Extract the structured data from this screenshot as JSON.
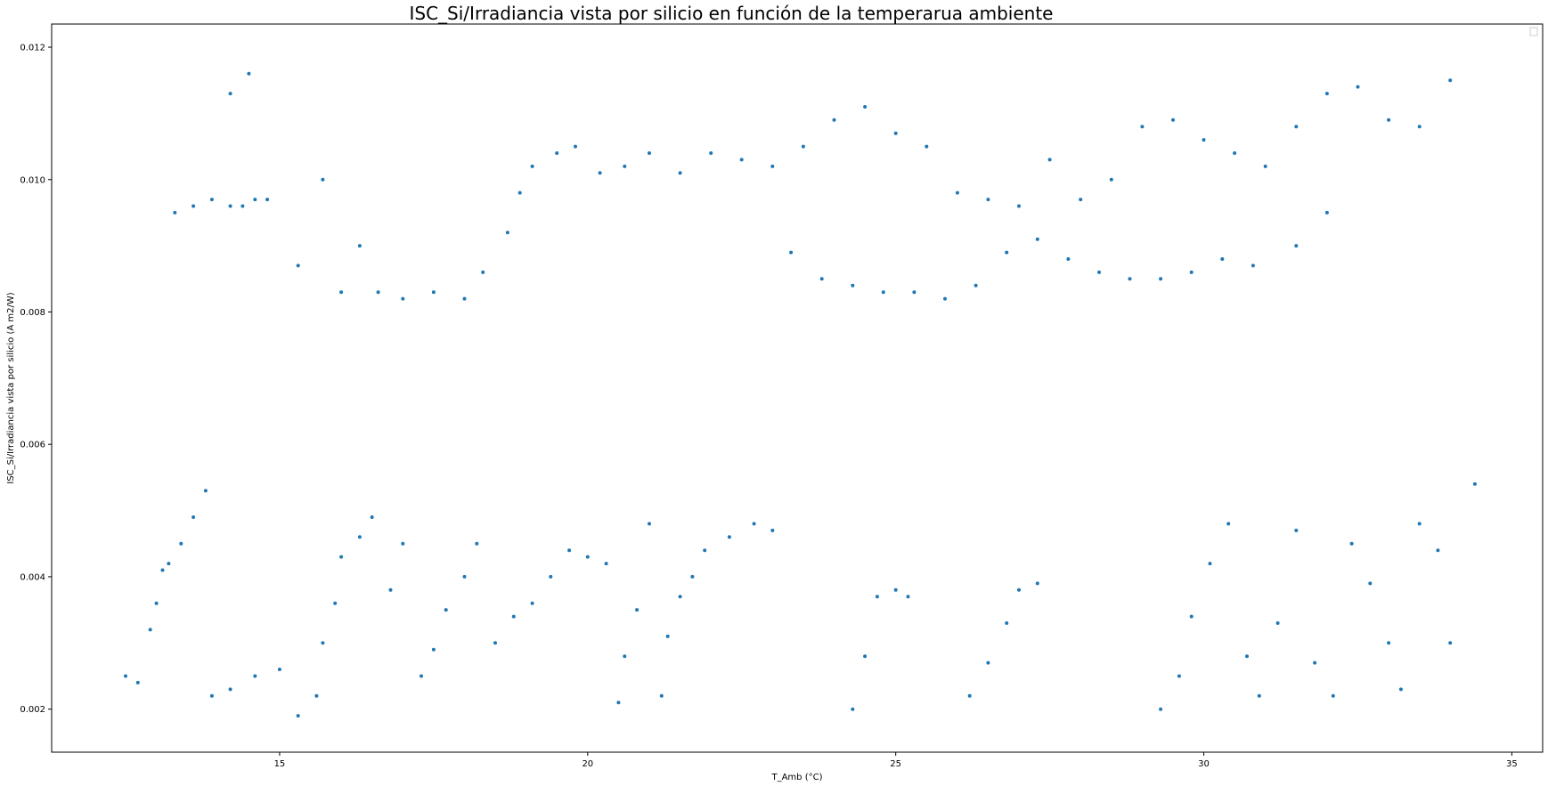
{
  "chart_data": {
    "type": "scatter",
    "title": "ISC_Si/Irradiancia vista por silicio en función de la temperarua ambiente",
    "xlabel": "T_Amb (°C)",
    "ylabel": "ISC_Si/Irradiancia vista por silicio (A m2/W)",
    "xlim": [
      11.3,
      35.5
    ],
    "ylim": [
      0.00135,
      0.01235
    ],
    "xticks": [
      "15",
      "20",
      "25",
      "30",
      "35"
    ],
    "yticks": [
      "0.002",
      "0.004",
      "0.006",
      "0.008",
      "0.010",
      "0.012"
    ],
    "legend": "top-right",
    "grid": false,
    "marker_color": "#1f77b4",
    "series": [
      {
        "points": [
          [
            12.5,
            0.0025
          ],
          [
            12.7,
            0.0024
          ],
          [
            12.9,
            0.0032
          ],
          [
            13.0,
            0.0036
          ],
          [
            13.1,
            0.0041
          ],
          [
            13.2,
            0.0042
          ],
          [
            13.4,
            0.0045
          ],
          [
            13.6,
            0.0049
          ],
          [
            13.8,
            0.0053
          ],
          [
            13.3,
            0.0095
          ],
          [
            13.6,
            0.0096
          ],
          [
            13.9,
            0.0097
          ],
          [
            14.2,
            0.0096
          ],
          [
            14.4,
            0.0096
          ],
          [
            14.6,
            0.0097
          ],
          [
            14.8,
            0.0097
          ],
          [
            14.2,
            0.0113
          ],
          [
            14.5,
            0.0116
          ],
          [
            13.9,
            0.0022
          ],
          [
            14.2,
            0.0023
          ],
          [
            14.6,
            0.0025
          ],
          [
            15.0,
            0.0026
          ],
          [
            15.3,
            0.0019
          ],
          [
            15.6,
            0.0022
          ],
          [
            15.7,
            0.003
          ],
          [
            15.9,
            0.0036
          ],
          [
            16.0,
            0.0043
          ],
          [
            16.3,
            0.0046
          ],
          [
            16.5,
            0.0049
          ],
          [
            16.8,
            0.0038
          ],
          [
            17.0,
            0.0045
          ],
          [
            17.3,
            0.0025
          ],
          [
            17.5,
            0.0029
          ],
          [
            17.7,
            0.0035
          ],
          [
            18.0,
            0.004
          ],
          [
            18.2,
            0.0045
          ],
          [
            18.5,
            0.003
          ],
          [
            18.8,
            0.0034
          ],
          [
            19.1,
            0.0036
          ],
          [
            19.4,
            0.004
          ],
          [
            19.7,
            0.0044
          ],
          [
            20.0,
            0.0043
          ],
          [
            20.3,
            0.0042
          ],
          [
            20.5,
            0.0021
          ],
          [
            20.6,
            0.0028
          ],
          [
            20.8,
            0.0035
          ],
          [
            21.0,
            0.0048
          ],
          [
            21.2,
            0.0022
          ],
          [
            21.3,
            0.0031
          ],
          [
            21.5,
            0.0037
          ],
          [
            21.7,
            0.004
          ],
          [
            21.9,
            0.0044
          ],
          [
            22.3,
            0.0046
          ],
          [
            22.7,
            0.0048
          ],
          [
            23.0,
            0.0047
          ],
          [
            15.3,
            0.0087
          ],
          [
            15.7,
            0.01
          ],
          [
            16.0,
            0.0083
          ],
          [
            16.3,
            0.009
          ],
          [
            16.6,
            0.0083
          ],
          [
            17.0,
            0.0082
          ],
          [
            17.5,
            0.0083
          ],
          [
            18.0,
            0.0082
          ],
          [
            18.3,
            0.0086
          ],
          [
            18.7,
            0.0092
          ],
          [
            18.9,
            0.0098
          ],
          [
            19.1,
            0.0102
          ],
          [
            19.5,
            0.0104
          ],
          [
            19.8,
            0.0105
          ],
          [
            20.2,
            0.0101
          ],
          [
            20.6,
            0.0102
          ],
          [
            21.0,
            0.0104
          ],
          [
            21.5,
            0.0101
          ],
          [
            22.0,
            0.0104
          ],
          [
            22.5,
            0.0103
          ],
          [
            23.0,
            0.0102
          ],
          [
            23.5,
            0.0105
          ],
          [
            24.0,
            0.0109
          ],
          [
            24.5,
            0.0111
          ],
          [
            25.0,
            0.0107
          ],
          [
            25.5,
            0.0105
          ],
          [
            26.0,
            0.0098
          ],
          [
            26.5,
            0.0097
          ],
          [
            27.0,
            0.0096
          ],
          [
            27.5,
            0.0103
          ],
          [
            28.0,
            0.0097
          ],
          [
            28.5,
            0.01
          ],
          [
            29.0,
            0.0108
          ],
          [
            29.5,
            0.0109
          ],
          [
            30.0,
            0.0106
          ],
          [
            30.5,
            0.0104
          ],
          [
            31.0,
            0.0102
          ],
          [
            31.5,
            0.0108
          ],
          [
            32.0,
            0.0113
          ],
          [
            32.5,
            0.0114
          ],
          [
            33.0,
            0.0109
          ],
          [
            33.5,
            0.0108
          ],
          [
            34.0,
            0.0115
          ],
          [
            23.3,
            0.0089
          ],
          [
            23.8,
            0.0085
          ],
          [
            24.3,
            0.0084
          ],
          [
            24.8,
            0.0083
          ],
          [
            25.3,
            0.0083
          ],
          [
            25.8,
            0.0082
          ],
          [
            26.3,
            0.0084
          ],
          [
            26.8,
            0.0089
          ],
          [
            27.3,
            0.0091
          ],
          [
            27.8,
            0.0088
          ],
          [
            28.3,
            0.0086
          ],
          [
            28.8,
            0.0085
          ],
          [
            29.3,
            0.0085
          ],
          [
            29.8,
            0.0086
          ],
          [
            30.3,
            0.0088
          ],
          [
            30.8,
            0.0087
          ],
          [
            31.5,
            0.009
          ],
          [
            32.0,
            0.0095
          ],
          [
            24.3,
            0.002
          ],
          [
            24.5,
            0.0028
          ],
          [
            24.7,
            0.0037
          ],
          [
            25.0,
            0.0038
          ],
          [
            25.2,
            0.0037
          ],
          [
            26.2,
            0.0022
          ],
          [
            26.5,
            0.0027
          ],
          [
            26.8,
            0.0033
          ],
          [
            27.0,
            0.0038
          ],
          [
            27.3,
            0.0039
          ],
          [
            29.3,
            0.002
          ],
          [
            29.6,
            0.0025
          ],
          [
            29.8,
            0.0034
          ],
          [
            30.1,
            0.0042
          ],
          [
            30.4,
            0.0048
          ],
          [
            30.7,
            0.0028
          ],
          [
            30.9,
            0.0022
          ],
          [
            31.2,
            0.0033
          ],
          [
            31.5,
            0.0047
          ],
          [
            31.8,
            0.0027
          ],
          [
            32.1,
            0.0022
          ],
          [
            32.4,
            0.0045
          ],
          [
            32.7,
            0.0039
          ],
          [
            33.0,
            0.003
          ],
          [
            33.2,
            0.0023
          ],
          [
            33.5,
            0.0048
          ],
          [
            33.8,
            0.0044
          ],
          [
            34.0,
            0.003
          ],
          [
            34.4,
            0.0054
          ]
        ]
      }
    ]
  }
}
